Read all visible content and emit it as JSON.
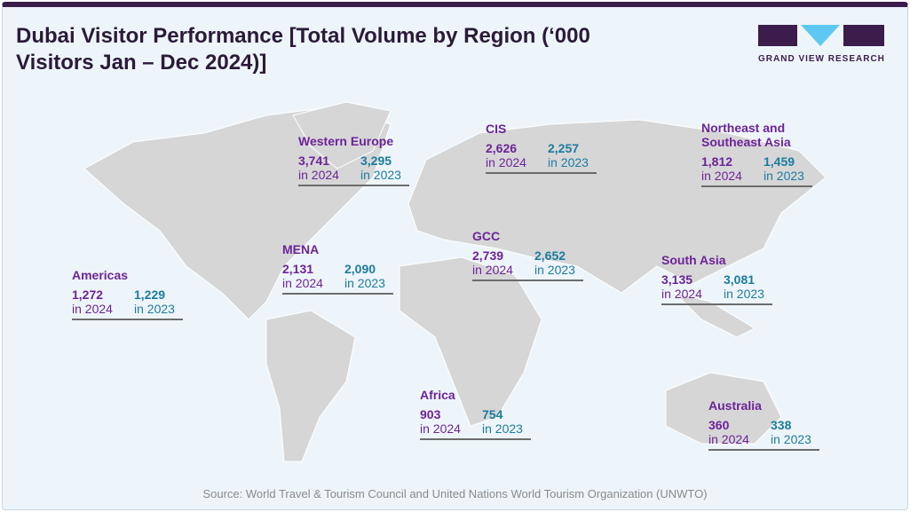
{
  "title": "Dubai Visitor Performance [Total Volume by Region (‘000 Visitors Jan – Dec 2024)]",
  "logo": {
    "text": "GRAND VIEW RESEARCH"
  },
  "colors": {
    "value_2024": "#6b2499",
    "value_2023": "#1b7c9e",
    "map": "#d6d6d6"
  },
  "regions": [
    {
      "name": "Western Europe",
      "v2024": "3,741",
      "v2023": "3,295",
      "l2024": "in 2024",
      "l2023": "in 2023"
    },
    {
      "name": "CIS",
      "v2024": "2,626",
      "v2023": "2,257",
      "l2024": "in 2024",
      "l2023": "in 2023"
    },
    {
      "name": "Northeast and Southeast Asia",
      "v2024": "1,812",
      "v2023": "1,459",
      "l2024": "in 2024",
      "l2023": "in 2023"
    },
    {
      "name": "MENA",
      "v2024": "2,131",
      "v2023": "2,090",
      "l2024": "in 2024",
      "l2023": "in 2023"
    },
    {
      "name": "GCC",
      "v2024": "2,739",
      "v2023": "2,652",
      "l2024": "in 2024",
      "l2023": "in 2023"
    },
    {
      "name": "South Asia",
      "v2024": "3,135",
      "v2023": "3,081",
      "l2024": "in 2024",
      "l2023": "in 2023"
    },
    {
      "name": "Americas",
      "v2024": "1,272",
      "v2023": "1,229",
      "l2024": "in 2024",
      "l2023": "in 2023"
    },
    {
      "name": "Africa",
      "v2024": "903",
      "v2023": "754",
      "l2024": "in 2024",
      "l2023": "in 2023"
    },
    {
      "name": "Australia",
      "v2024": "360",
      "v2023": "338",
      "l2024": "in 2024",
      "l2023": "in 2023"
    }
  ],
  "source": "Source: World Travel & Tourism Council and United Nations World Tourism Organization (UNWTO)"
}
